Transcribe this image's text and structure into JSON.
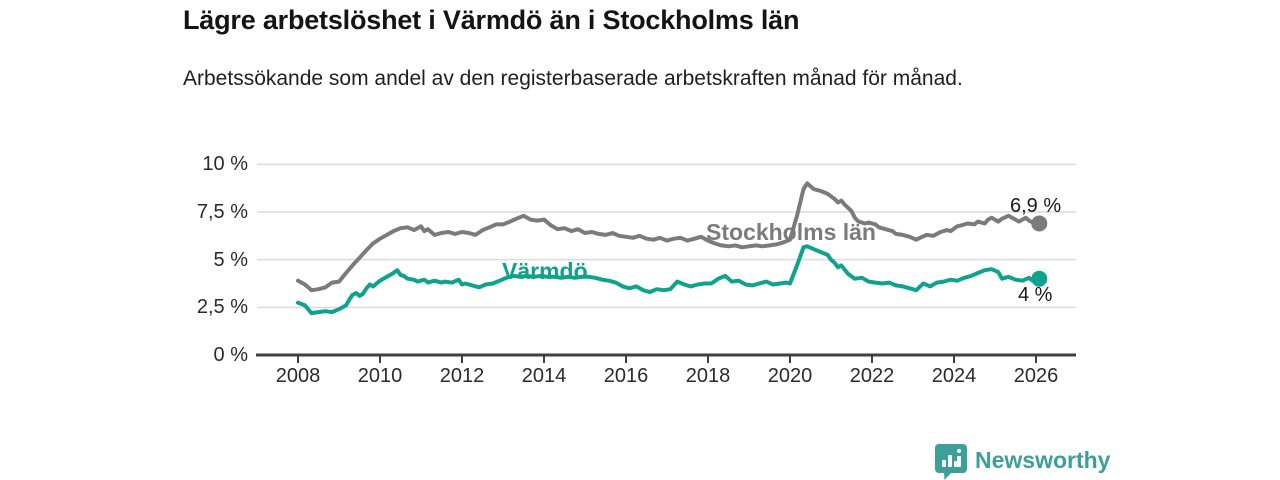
{
  "header": {
    "title": "Lägre arbetslöshet i Värmdö än i Stockholms län",
    "subtitle": "Arbetssökande som andel av den registerbaserade arbetskraften månad för månad."
  },
  "chart_data": {
    "type": "line",
    "title": "Lägre arbetslöshet i Värmdö än i Stockholms län",
    "subtitle": "Arbetssökande som andel av den registerbaserade arbetskraften månad för månad.",
    "grid": true,
    "legend_position": "inline-labels",
    "x_axis": {
      "range": [
        2007,
        2027
      ],
      "ticks": [
        2008,
        2010,
        2012,
        2014,
        2016,
        2018,
        2020,
        2022,
        2024,
        2026
      ],
      "labels": [
        "2008",
        "2010",
        "2012",
        "2014",
        "2016",
        "2018",
        "2020",
        "2022",
        "2024",
        "2026"
      ]
    },
    "y_axis": {
      "unit": "%",
      "range": [
        0,
        10
      ],
      "ticks": [
        0,
        2.5,
        5,
        7.5,
        10
      ],
      "labels": [
        "0 %",
        "2,5 %",
        "5 %",
        "7,5 %",
        "10 %"
      ]
    },
    "series": [
      {
        "name": "Stockholms län",
        "color": "#7b7b7b",
        "end_value": 6.9,
        "end_label": "6,9 %",
        "points": [
          [
            2008.0,
            3.9
          ],
          [
            2008.17,
            3.7
          ],
          [
            2008.33,
            3.4
          ],
          [
            2008.5,
            3.45
          ],
          [
            2008.67,
            3.55
          ],
          [
            2008.83,
            3.8
          ],
          [
            2009.0,
            3.85
          ],
          [
            2009.17,
            4.3
          ],
          [
            2009.33,
            4.7
          ],
          [
            2009.5,
            5.1
          ],
          [
            2009.67,
            5.5
          ],
          [
            2009.83,
            5.85
          ],
          [
            2010.0,
            6.1
          ],
          [
            2010.17,
            6.3
          ],
          [
            2010.33,
            6.5
          ],
          [
            2010.5,
            6.65
          ],
          [
            2010.67,
            6.7
          ],
          [
            2010.83,
            6.55
          ],
          [
            2011.0,
            6.75
          ],
          [
            2011.08,
            6.5
          ],
          [
            2011.17,
            6.6
          ],
          [
            2011.33,
            6.3
          ],
          [
            2011.5,
            6.4
          ],
          [
            2011.67,
            6.45
          ],
          [
            2011.83,
            6.35
          ],
          [
            2012.0,
            6.45
          ],
          [
            2012.17,
            6.4
          ],
          [
            2012.33,
            6.3
          ],
          [
            2012.5,
            6.55
          ],
          [
            2012.67,
            6.7
          ],
          [
            2012.83,
            6.85
          ],
          [
            2013.0,
            6.85
          ],
          [
            2013.17,
            7.0
          ],
          [
            2013.33,
            7.15
          ],
          [
            2013.5,
            7.3
          ],
          [
            2013.67,
            7.1
          ],
          [
            2013.83,
            7.05
          ],
          [
            2014.0,
            7.1
          ],
          [
            2014.17,
            6.8
          ],
          [
            2014.33,
            6.6
          ],
          [
            2014.5,
            6.65
          ],
          [
            2014.67,
            6.5
          ],
          [
            2014.83,
            6.6
          ],
          [
            2015.0,
            6.4
          ],
          [
            2015.17,
            6.45
          ],
          [
            2015.33,
            6.35
          ],
          [
            2015.5,
            6.3
          ],
          [
            2015.67,
            6.4
          ],
          [
            2015.83,
            6.25
          ],
          [
            2016.0,
            6.2
          ],
          [
            2016.17,
            6.15
          ],
          [
            2016.33,
            6.25
          ],
          [
            2016.5,
            6.1
          ],
          [
            2016.67,
            6.05
          ],
          [
            2016.83,
            6.15
          ],
          [
            2017.0,
            6.0
          ],
          [
            2017.17,
            6.1
          ],
          [
            2017.33,
            6.15
          ],
          [
            2017.5,
            6.0
          ],
          [
            2017.67,
            6.1
          ],
          [
            2017.83,
            6.2
          ],
          [
            2018.0,
            6.0
          ],
          [
            2018.17,
            5.85
          ],
          [
            2018.33,
            5.75
          ],
          [
            2018.5,
            5.7
          ],
          [
            2018.67,
            5.75
          ],
          [
            2018.83,
            5.65
          ],
          [
            2019.0,
            5.7
          ],
          [
            2019.17,
            5.75
          ],
          [
            2019.33,
            5.7
          ],
          [
            2019.5,
            5.75
          ],
          [
            2019.67,
            5.8
          ],
          [
            2019.83,
            5.9
          ],
          [
            2020.0,
            6.05
          ],
          [
            2020.17,
            7.3
          ],
          [
            2020.33,
            8.7
          ],
          [
            2020.42,
            9.0
          ],
          [
            2020.5,
            8.85
          ],
          [
            2020.58,
            8.7
          ],
          [
            2020.75,
            8.6
          ],
          [
            2020.92,
            8.45
          ],
          [
            2021.08,
            8.2
          ],
          [
            2021.17,
            8.0
          ],
          [
            2021.25,
            8.1
          ],
          [
            2021.33,
            7.9
          ],
          [
            2021.5,
            7.55
          ],
          [
            2021.58,
            7.2
          ],
          [
            2021.67,
            7.0
          ],
          [
            2021.83,
            6.9
          ],
          [
            2021.92,
            6.95
          ],
          [
            2022.08,
            6.85
          ],
          [
            2022.17,
            6.7
          ],
          [
            2022.33,
            6.6
          ],
          [
            2022.5,
            6.5
          ],
          [
            2022.58,
            6.35
          ],
          [
            2022.75,
            6.3
          ],
          [
            2022.92,
            6.2
          ],
          [
            2023.08,
            6.05
          ],
          [
            2023.17,
            6.15
          ],
          [
            2023.33,
            6.3
          ],
          [
            2023.5,
            6.25
          ],
          [
            2023.67,
            6.45
          ],
          [
            2023.83,
            6.55
          ],
          [
            2023.92,
            6.5
          ],
          [
            2024.08,
            6.75
          ],
          [
            2024.17,
            6.8
          ],
          [
            2024.33,
            6.9
          ],
          [
            2024.5,
            6.85
          ],
          [
            2024.58,
            7.0
          ],
          [
            2024.75,
            6.9
          ],
          [
            2024.83,
            7.1
          ],
          [
            2024.92,
            7.2
          ],
          [
            2025.08,
            7.0
          ],
          [
            2025.17,
            7.15
          ],
          [
            2025.33,
            7.3
          ],
          [
            2025.5,
            7.1
          ],
          [
            2025.58,
            7.0
          ],
          [
            2025.75,
            7.2
          ],
          [
            2025.83,
            7.05
          ],
          [
            2025.92,
            6.95
          ],
          [
            2026.08,
            6.9
          ]
        ]
      },
      {
        "name": "Värmdö",
        "color": "#0fa28d",
        "end_value": 4.0,
        "end_label": "4 %",
        "points": [
          [
            2008.0,
            2.75
          ],
          [
            2008.17,
            2.6
          ],
          [
            2008.33,
            2.2
          ],
          [
            2008.5,
            2.25
          ],
          [
            2008.67,
            2.3
          ],
          [
            2008.83,
            2.25
          ],
          [
            2009.0,
            2.4
          ],
          [
            2009.17,
            2.6
          ],
          [
            2009.25,
            2.9
          ],
          [
            2009.33,
            3.15
          ],
          [
            2009.42,
            3.25
          ],
          [
            2009.5,
            3.1
          ],
          [
            2009.58,
            3.2
          ],
          [
            2009.67,
            3.5
          ],
          [
            2009.75,
            3.7
          ],
          [
            2009.83,
            3.6
          ],
          [
            2010.0,
            3.9
          ],
          [
            2010.17,
            4.1
          ],
          [
            2010.33,
            4.3
          ],
          [
            2010.42,
            4.45
          ],
          [
            2010.5,
            4.2
          ],
          [
            2010.58,
            4.15
          ],
          [
            2010.67,
            4.0
          ],
          [
            2010.83,
            3.95
          ],
          [
            2010.92,
            3.85
          ],
          [
            2011.08,
            3.95
          ],
          [
            2011.17,
            3.8
          ],
          [
            2011.33,
            3.9
          ],
          [
            2011.5,
            3.8
          ],
          [
            2011.58,
            3.85
          ],
          [
            2011.75,
            3.8
          ],
          [
            2011.92,
            3.95
          ],
          [
            2012.0,
            3.7
          ],
          [
            2012.08,
            3.75
          ],
          [
            2012.25,
            3.65
          ],
          [
            2012.42,
            3.55
          ],
          [
            2012.58,
            3.7
          ],
          [
            2012.75,
            3.75
          ],
          [
            2012.92,
            3.9
          ],
          [
            2013.08,
            4.05
          ],
          [
            2013.25,
            4.15
          ],
          [
            2013.42,
            4.1
          ],
          [
            2013.58,
            4.15
          ],
          [
            2013.75,
            4.1
          ],
          [
            2013.92,
            4.15
          ],
          [
            2014.08,
            4.1
          ],
          [
            2014.25,
            4.1
          ],
          [
            2014.42,
            4.05
          ],
          [
            2014.58,
            4.1
          ],
          [
            2014.75,
            4.05
          ],
          [
            2014.92,
            4.1
          ],
          [
            2015.08,
            4.1
          ],
          [
            2015.25,
            4.05
          ],
          [
            2015.42,
            3.95
          ],
          [
            2015.58,
            3.9
          ],
          [
            2015.75,
            3.8
          ],
          [
            2015.92,
            3.6
          ],
          [
            2016.08,
            3.5
          ],
          [
            2016.25,
            3.6
          ],
          [
            2016.42,
            3.4
          ],
          [
            2016.58,
            3.3
          ],
          [
            2016.75,
            3.45
          ],
          [
            2016.92,
            3.4
          ],
          [
            2017.08,
            3.45
          ],
          [
            2017.25,
            3.85
          ],
          [
            2017.42,
            3.7
          ],
          [
            2017.58,
            3.6
          ],
          [
            2017.75,
            3.7
          ],
          [
            2017.92,
            3.75
          ],
          [
            2018.08,
            3.75
          ],
          [
            2018.25,
            4.0
          ],
          [
            2018.42,
            4.15
          ],
          [
            2018.58,
            3.85
          ],
          [
            2018.75,
            3.9
          ],
          [
            2018.92,
            3.7
          ],
          [
            2019.08,
            3.65
          ],
          [
            2019.25,
            3.75
          ],
          [
            2019.42,
            3.85
          ],
          [
            2019.58,
            3.7
          ],
          [
            2019.75,
            3.75
          ],
          [
            2019.92,
            3.8
          ],
          [
            2020.0,
            3.75
          ],
          [
            2020.17,
            4.7
          ],
          [
            2020.33,
            5.65
          ],
          [
            2020.42,
            5.7
          ],
          [
            2020.58,
            5.55
          ],
          [
            2020.75,
            5.4
          ],
          [
            2020.92,
            5.25
          ],
          [
            2021.0,
            5.0
          ],
          [
            2021.08,
            4.85
          ],
          [
            2021.17,
            4.6
          ],
          [
            2021.25,
            4.7
          ],
          [
            2021.42,
            4.25
          ],
          [
            2021.58,
            4.0
          ],
          [
            2021.75,
            4.05
          ],
          [
            2021.92,
            3.85
          ],
          [
            2022.08,
            3.8
          ],
          [
            2022.25,
            3.75
          ],
          [
            2022.42,
            3.8
          ],
          [
            2022.58,
            3.65
          ],
          [
            2022.75,
            3.6
          ],
          [
            2022.92,
            3.5
          ],
          [
            2023.08,
            3.4
          ],
          [
            2023.25,
            3.75
          ],
          [
            2023.42,
            3.6
          ],
          [
            2023.58,
            3.8
          ],
          [
            2023.75,
            3.85
          ],
          [
            2023.92,
            3.95
          ],
          [
            2024.08,
            3.9
          ],
          [
            2024.25,
            4.05
          ],
          [
            2024.42,
            4.15
          ],
          [
            2024.58,
            4.3
          ],
          [
            2024.75,
            4.45
          ],
          [
            2024.92,
            4.5
          ],
          [
            2025.08,
            4.35
          ],
          [
            2025.17,
            4.0
          ],
          [
            2025.33,
            4.1
          ],
          [
            2025.5,
            3.95
          ],
          [
            2025.67,
            3.9
          ],
          [
            2025.83,
            4.05
          ],
          [
            2025.92,
            3.9
          ],
          [
            2026.08,
            4.0
          ]
        ]
      }
    ],
    "colors": {
      "axis": "#3f3f3f",
      "gridline": "#dcdcdc",
      "tick_text": "#2b2b2b",
      "annotation_text": "#1a1a1a"
    }
  },
  "footer": {
    "brand": "Newsworthy",
    "brand_color": "#3d9f9a"
  }
}
